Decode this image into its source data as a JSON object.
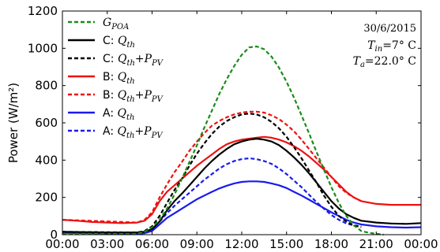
{
  "chart_data": {
    "type": "line",
    "date": "30/6/2015",
    "ylabel": "Power (W/m²)",
    "xlabel": "",
    "ylim": [
      0,
      1200
    ],
    "xlim": [
      0,
      24
    ],
    "x_ticks": [
      "00:00",
      "03:00",
      "06:00",
      "09:00",
      "12:00",
      "15:00",
      "18:00",
      "21:00",
      "00:00"
    ],
    "y_ticks": [
      "0",
      "200",
      "400",
      "600",
      "800",
      "1000",
      "1200"
    ],
    "annotations": {
      "date": "30/6/2015",
      "t_in_label": "T",
      "t_in_sub": "in",
      "t_in_value": "=7° C",
      "t_a_label": "T",
      "t_a_sub": "a",
      "t_a_value": "=22.0° C"
    },
    "legend_position": "top-left",
    "series": [
      {
        "key": "gpoa",
        "name": "G_POA",
        "legend_main": "G",
        "legend_sub": "POA",
        "color": "#1a8c1a",
        "dashed": true,
        "x": [
          0,
          5,
          5.5,
          6,
          6.5,
          7,
          7.5,
          8,
          8.5,
          9,
          9.5,
          10,
          10.5,
          11,
          11.5,
          12,
          12.5,
          13,
          13.5,
          14,
          14.5,
          15,
          15.5,
          16,
          16.5,
          17,
          17.5,
          18,
          18.5,
          19,
          19.5,
          20,
          20.5,
          21,
          21.5
        ],
        "y": [
          5,
          5,
          15,
          40,
          80,
          140,
          215,
          300,
          390,
          480,
          575,
          665,
          755,
          835,
          905,
          965,
          1005,
          1010,
          995,
          955,
          895,
          820,
          735,
          640,
          545,
          445,
          350,
          255,
          170,
          100,
          50,
          20,
          10,
          5,
          0
        ]
      },
      {
        "key": "c_qth",
        "name": "C: Q_th",
        "legend_prefix": "C: ",
        "legend_main": "Q",
        "legend_sub": "th",
        "color": "#000000",
        "dashed": false,
        "x": [
          0,
          3,
          5,
          5.5,
          6,
          6.5,
          7,
          7.5,
          8,
          8.5,
          9,
          9.5,
          10,
          10.5,
          11,
          11.5,
          12,
          12.5,
          13,
          13.5,
          14,
          14.5,
          15,
          15.5,
          16,
          16.5,
          17,
          17.5,
          18,
          18.5,
          19,
          19.5,
          20,
          21,
          22,
          23,
          24
        ],
        "y": [
          15,
          12,
          12,
          15,
          30,
          70,
          130,
          180,
          220,
          265,
          310,
          355,
          395,
          430,
          460,
          485,
          500,
          510,
          515,
          510,
          500,
          480,
          450,
          415,
          375,
          330,
          280,
          230,
          180,
          140,
          110,
          90,
          75,
          65,
          60,
          58,
          62
        ]
      },
      {
        "key": "c_qth_ppv",
        "name": "C: Q_th + P_PV",
        "legend_prefix": "C: ",
        "legend_main": "Q",
        "legend_sub": "th",
        "legend_suffix": "+P",
        "legend_suffix_sub": "PV",
        "color": "#000000",
        "dashed": true,
        "x": [
          0,
          5,
          5.5,
          6,
          6.5,
          7,
          7.5,
          8,
          8.5,
          9,
          9.5,
          10,
          10.5,
          11,
          11.5,
          12,
          12.5,
          13,
          13.5,
          14,
          14.5,
          15,
          15.5,
          16,
          16.5,
          17,
          17.5,
          18,
          18.5,
          19,
          19.5,
          20
        ],
        "y": [
          15,
          12,
          20,
          45,
          100,
          170,
          240,
          300,
          370,
          435,
          490,
          540,
          580,
          610,
          630,
          645,
          650,
          645,
          630,
          605,
          570,
          525,
          470,
          410,
          345,
          280,
          210,
          150,
          100,
          70,
          50,
          40
        ]
      },
      {
        "key": "b_qth",
        "name": "B: Q_th",
        "legend_prefix": "B: ",
        "legend_main": "Q",
        "legend_sub": "th",
        "color": "#ee1111",
        "dashed": false,
        "x": [
          0,
          1,
          2,
          3,
          4,
          5,
          5.5,
          6,
          6.5,
          7,
          7.5,
          8,
          8.5,
          9,
          9.5,
          10,
          10.5,
          11,
          11.5,
          12,
          12.5,
          13,
          13.5,
          14,
          14.5,
          15,
          15.5,
          16,
          16.5,
          17,
          17.5,
          18,
          18.5,
          19,
          19.5,
          20,
          21,
          22,
          23,
          24
        ],
        "y": [
          80,
          75,
          68,
          65,
          62,
          65,
          75,
          110,
          180,
          230,
          265,
          300,
          335,
          370,
          400,
          430,
          460,
          485,
          500,
          510,
          515,
          520,
          525,
          520,
          510,
          495,
          475,
          450,
          420,
          385,
          350,
          310,
          270,
          230,
          200,
          180,
          165,
          160,
          160,
          160
        ]
      },
      {
        "key": "b_qth_ppv",
        "name": "B: Q_th + P_PV",
        "legend_prefix": "B: ",
        "legend_main": "Q",
        "legend_sub": "th",
        "legend_suffix": "+P",
        "legend_suffix_sub": "PV",
        "color": "#ee1111",
        "dashed": true,
        "x": [
          0,
          5,
          5.5,
          6,
          6.5,
          7,
          7.5,
          8,
          8.5,
          9,
          9.5,
          10,
          10.5,
          11,
          11.5,
          12,
          12.5,
          13,
          13.5,
          14,
          14.5,
          15,
          15.5,
          16,
          16.5,
          17,
          17.5,
          18,
          18.5,
          19,
          19.5,
          20
        ],
        "y": [
          80,
          65,
          80,
          120,
          200,
          270,
          335,
          390,
          450,
          500,
          545,
          585,
          610,
          630,
          645,
          655,
          660,
          660,
          655,
          640,
          620,
          590,
          555,
          510,
          460,
          410,
          360,
          310,
          260,
          225,
          200,
          180
        ]
      },
      {
        "key": "a_qth",
        "name": "A: Q_th",
        "legend_prefix": "A: ",
        "legend_main": "Q",
        "legend_sub": "th",
        "color": "#1a1aee",
        "dashed": false,
        "x": [
          0,
          2,
          4,
          5,
          5.5,
          6,
          6.5,
          7,
          7.5,
          8,
          8.5,
          9,
          9.5,
          10,
          10.5,
          11,
          11.5,
          12,
          12.5,
          13,
          13.5,
          14,
          14.5,
          15,
          15.5,
          16,
          16.5,
          17,
          17.5,
          18,
          18.5,
          19,
          19.5,
          20,
          21,
          22,
          23,
          24
        ],
        "y": [
          10,
          8,
          6,
          5,
          8,
          20,
          55,
          90,
          115,
          140,
          165,
          190,
          210,
          230,
          248,
          263,
          275,
          283,
          286,
          286,
          283,
          275,
          265,
          250,
          230,
          210,
          188,
          165,
          143,
          120,
          100,
          80,
          65,
          55,
          45,
          40,
          38,
          40
        ]
      },
      {
        "key": "a_qth_ppv",
        "name": "A: Q_th + P_PV",
        "legend_prefix": "A: ",
        "legend_main": "Q",
        "legend_sub": "th",
        "legend_suffix": "+P",
        "legend_suffix_sub": "PV",
        "color": "#1a1aee",
        "dashed": true,
        "x": [
          0,
          5,
          5.5,
          6,
          6.5,
          7,
          7.5,
          8,
          8.5,
          9,
          9.5,
          10,
          10.5,
          11,
          11.5,
          12,
          12.5,
          13,
          13.5,
          14,
          14.5,
          15,
          15.5,
          16,
          16.5,
          17,
          17.5,
          18,
          18.5,
          19,
          19.5,
          20
        ],
        "y": [
          10,
          5,
          10,
          30,
          70,
          115,
          155,
          190,
          225,
          260,
          295,
          325,
          355,
          378,
          395,
          405,
          410,
          405,
          395,
          380,
          355,
          325,
          290,
          255,
          215,
          175,
          140,
          105,
          80,
          60,
          50,
          45
        ]
      }
    ]
  }
}
